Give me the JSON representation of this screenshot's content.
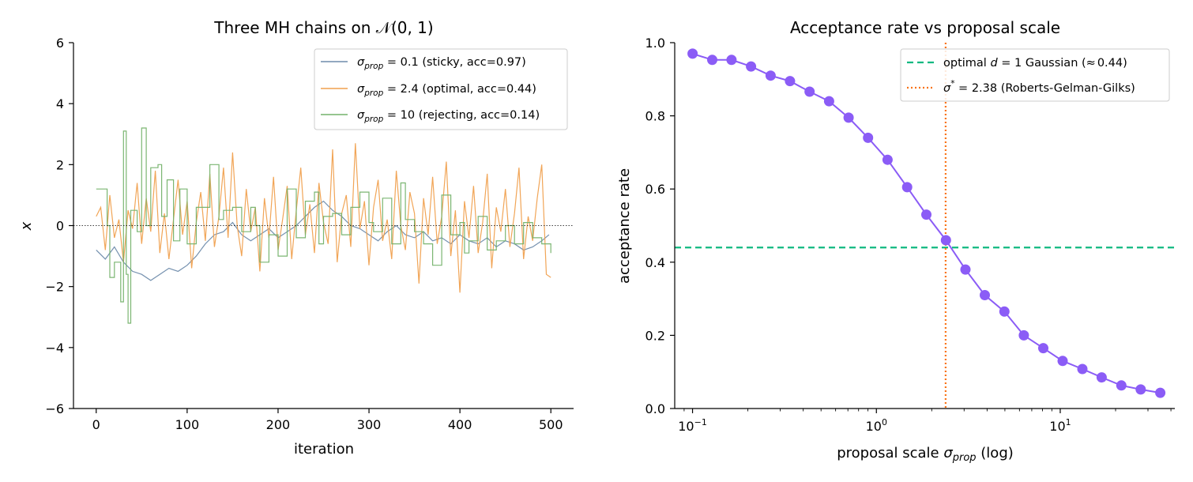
{
  "chart_data": [
    {
      "type": "line",
      "title": "Three MH chains on 𝒩(0, 1)",
      "xlabel": "iteration",
      "ylabel": "x",
      "xlim": [
        -25,
        525
      ],
      "ylim": [
        -6,
        6
      ],
      "xticks": [
        0,
        100,
        200,
        300,
        400,
        500
      ],
      "xtick_labels": [
        "0",
        "100",
        "200",
        "300",
        "400",
        "500"
      ],
      "yticks": [
        -6,
        -4,
        -2,
        0,
        2,
        4,
        6
      ],
      "ytick_labels": [
        "−6",
        "−4",
        "−2",
        "0",
        "2",
        "4",
        "6"
      ],
      "reference_line": {
        "y": 0,
        "style": "dotted",
        "color": "#000000"
      },
      "legend_position": "top-right",
      "grid": false,
      "series": [
        {
          "name": "σprop = 0.1 (sticky, acc=0.97)",
          "legend_sigma": "σ",
          "legend_sub": "prop",
          "legend_rest": " = 0.1 (sticky, acc=0.97)",
          "color": "#6e8bab",
          "x": [
            0,
            10,
            20,
            30,
            40,
            50,
            60,
            70,
            80,
            90,
            100,
            110,
            120,
            130,
            140,
            150,
            160,
            170,
            180,
            190,
            200,
            210,
            220,
            230,
            240,
            250,
            260,
            270,
            280,
            290,
            300,
            310,
            320,
            330,
            340,
            350,
            360,
            370,
            380,
            390,
            400,
            410,
            420,
            430,
            440,
            450,
            460,
            470,
            480,
            490,
            498
          ],
          "y": [
            -0.8,
            -1.1,
            -0.7,
            -1.2,
            -1.5,
            -1.6,
            -1.8,
            -1.6,
            -1.4,
            -1.5,
            -1.3,
            -1.0,
            -0.6,
            -0.3,
            -0.2,
            0.1,
            -0.3,
            -0.5,
            -0.3,
            -0.1,
            -0.4,
            -0.2,
            0.0,
            0.3,
            0.6,
            0.8,
            0.5,
            0.3,
            0.0,
            -0.1,
            -0.3,
            -0.5,
            -0.2,
            0.0,
            -0.3,
            -0.4,
            -0.2,
            -0.5,
            -0.4,
            -0.6,
            -0.3,
            -0.5,
            -0.6,
            -0.4,
            -0.7,
            -0.5,
            -0.6,
            -0.8,
            -0.7,
            -0.5,
            -0.3
          ]
        },
        {
          "name": "σprop = 2.4 (optimal, acc=0.44)",
          "legend_sigma": "σ",
          "legend_sub": "prop",
          "legend_rest": " = 2.4 (optimal, acc=0.44)",
          "color": "#f0a04e",
          "x": [
            0,
            5,
            10,
            15,
            20,
            25,
            30,
            35,
            40,
            45,
            50,
            55,
            60,
            65,
            70,
            75,
            80,
            85,
            90,
            95,
            100,
            105,
            110,
            115,
            120,
            125,
            130,
            135,
            140,
            145,
            150,
            155,
            160,
            165,
            170,
            175,
            180,
            185,
            190,
            195,
            200,
            205,
            210,
            215,
            220,
            225,
            230,
            235,
            240,
            245,
            250,
            255,
            260,
            265,
            270,
            275,
            280,
            285,
            290,
            295,
            300,
            305,
            310,
            315,
            320,
            325,
            330,
            335,
            340,
            345,
            350,
            355,
            360,
            365,
            370,
            375,
            380,
            385,
            390,
            395,
            400,
            405,
            410,
            415,
            420,
            425,
            430,
            435,
            440,
            445,
            450,
            455,
            460,
            465,
            470,
            475,
            480,
            485,
            490,
            495,
            500
          ],
          "y": [
            0.3,
            0.6,
            -0.8,
            1.0,
            -0.4,
            0.2,
            -1.2,
            0.5,
            -0.1,
            1.4,
            -0.6,
            0.9,
            -0.2,
            1.8,
            -0.9,
            0.4,
            -1.1,
            0.2,
            1.5,
            -0.3,
            0.8,
            -1.4,
            0.1,
            1.1,
            -0.5,
            1.7,
            -0.7,
            0.3,
            1.9,
            -0.4,
            2.4,
            0.0,
            -1.0,
            1.2,
            -0.2,
            0.6,
            -1.5,
            0.9,
            -0.4,
            1.6,
            -0.8,
            0.2,
            1.3,
            -1.1,
            0.5,
            1.9,
            -0.3,
            0.7,
            -0.9,
            1.4,
            0.1,
            -0.6,
            2.5,
            -1.2,
            0.4,
            1.0,
            -0.7,
            2.7,
            -0.1,
            0.8,
            -1.3,
            0.6,
            1.5,
            -0.5,
            0.2,
            -1.1,
            1.8,
            0.0,
            -0.8,
            1.1,
            0.4,
            -1.9,
            0.9,
            -0.3,
            1.6,
            -0.6,
            0.3,
            2.1,
            -1.0,
            0.5,
            -2.2,
            0.8,
            -0.4,
            1.3,
            -0.9,
            0.1,
            1.7,
            -1.4,
            0.6,
            -0.2,
            1.2,
            -0.7,
            0.4,
            1.9,
            -1.1,
            0.3,
            -0.5,
            0.9,
            2.0,
            -1.6,
            -1.7
          ]
        },
        {
          "name": "σprop = 10 (rejecting, acc=0.14)",
          "legend_sigma": "σ",
          "legend_sub": "prop",
          "legend_rest": " = 10 (rejecting, acc=0.14)",
          "color": "#74b26a",
          "step": true,
          "x": [
            0,
            12,
            15,
            20,
            27,
            30,
            33,
            35,
            38,
            45,
            50,
            55,
            60,
            68,
            72,
            78,
            85,
            92,
            100,
            110,
            125,
            135,
            140,
            150,
            160,
            170,
            175,
            180,
            190,
            200,
            210,
            220,
            230,
            240,
            245,
            250,
            260,
            270,
            280,
            290,
            300,
            305,
            315,
            325,
            335,
            340,
            350,
            360,
            370,
            380,
            390,
            400,
            405,
            410,
            420,
            430,
            440,
            450,
            460,
            470,
            480,
            490,
            500
          ],
          "y": [
            1.2,
            0.0,
            -1.7,
            -1.2,
            -2.5,
            3.1,
            -1.6,
            -3.2,
            0.5,
            -0.2,
            3.2,
            0.0,
            1.9,
            2.0,
            0.3,
            1.5,
            -0.5,
            1.2,
            -0.6,
            0.6,
            2.0,
            0.2,
            0.5,
            0.6,
            -0.2,
            0.6,
            0.0,
            -1.2,
            -0.3,
            -1.0,
            1.2,
            -0.4,
            0.8,
            1.1,
            -0.6,
            0.3,
            0.4,
            -0.3,
            0.6,
            1.1,
            0.1,
            -0.2,
            0.9,
            -0.6,
            1.4,
            0.2,
            -0.2,
            -0.6,
            -1.3,
            1.0,
            -0.3,
            0.1,
            -0.9,
            -0.5,
            0.3,
            -0.8,
            -0.5,
            0.0,
            -0.6,
            0.1,
            -0.4,
            -0.6,
            -0.9
          ]
        }
      ]
    },
    {
      "type": "line",
      "title": "Acceptance rate vs proposal scale",
      "xlabel": "proposal scale σprop (log)",
      "xlabel_main": "proposal scale ",
      "xlabel_sigma": "σ",
      "xlabel_sub": "prop",
      "xlabel_tail": " (log)",
      "ylabel": "acceptance rate",
      "xscale": "log",
      "xlim": [
        0.08,
        42
      ],
      "ylim": [
        0.0,
        1.0
      ],
      "xticks": [
        0.1,
        1,
        10
      ],
      "xtick_labels": [
        {
          "base": "10",
          "exp": "−1"
        },
        {
          "base": "10",
          "exp": "0"
        },
        {
          "base": "10",
          "exp": "1"
        }
      ],
      "yticks": [
        0.0,
        0.2,
        0.4,
        0.6,
        0.8,
        1.0
      ],
      "ytick_labels": [
        "0.0",
        "0.2",
        "0.4",
        "0.6",
        "0.8",
        "1.0"
      ],
      "legend_position": "top-right",
      "grid": false,
      "series": [
        {
          "name": "",
          "color": "#8b5cf6",
          "marker": "circle",
          "x": [
            0.1,
            0.128,
            0.163,
            0.208,
            0.266,
            0.339,
            0.433,
            0.553,
            0.706,
            0.901,
            1.15,
            1.47,
            1.87,
            2.39,
            3.05,
            3.89,
            4.97,
            6.34,
            8.09,
            10.3,
            13.2,
            16.8,
            21.5,
            27.4,
            35.0
          ],
          "y": [
            0.97,
            0.953,
            0.953,
            0.935,
            0.91,
            0.895,
            0.866,
            0.84,
            0.795,
            0.74,
            0.68,
            0.605,
            0.53,
            0.46,
            0.38,
            0.31,
            0.265,
            0.2,
            0.165,
            0.13,
            0.108,
            0.085,
            0.063,
            0.052,
            0.043
          ]
        }
      ],
      "reference_lines": [
        {
          "orientation": "horizontal",
          "value": 0.44,
          "style": "dashed",
          "color": "#10b981",
          "label": "optimal d = 1 Gaussian (≈0.44)",
          "label_pre": "optimal ",
          "label_var": "d",
          "label_post": " = 1 Gaussian (",
          "label_approx": "≈",
          "label_end": "0.44)"
        },
        {
          "orientation": "vertical",
          "value": 2.38,
          "style": "dotted",
          "color": "#f97316",
          "label": "σ* = 2.38 (Roberts-Gelman-Gilks)",
          "label_sigma": "σ",
          "label_star": "*",
          "label_rest": " = 2.38 (Roberts-Gelman-Gilks)"
        }
      ]
    }
  ]
}
